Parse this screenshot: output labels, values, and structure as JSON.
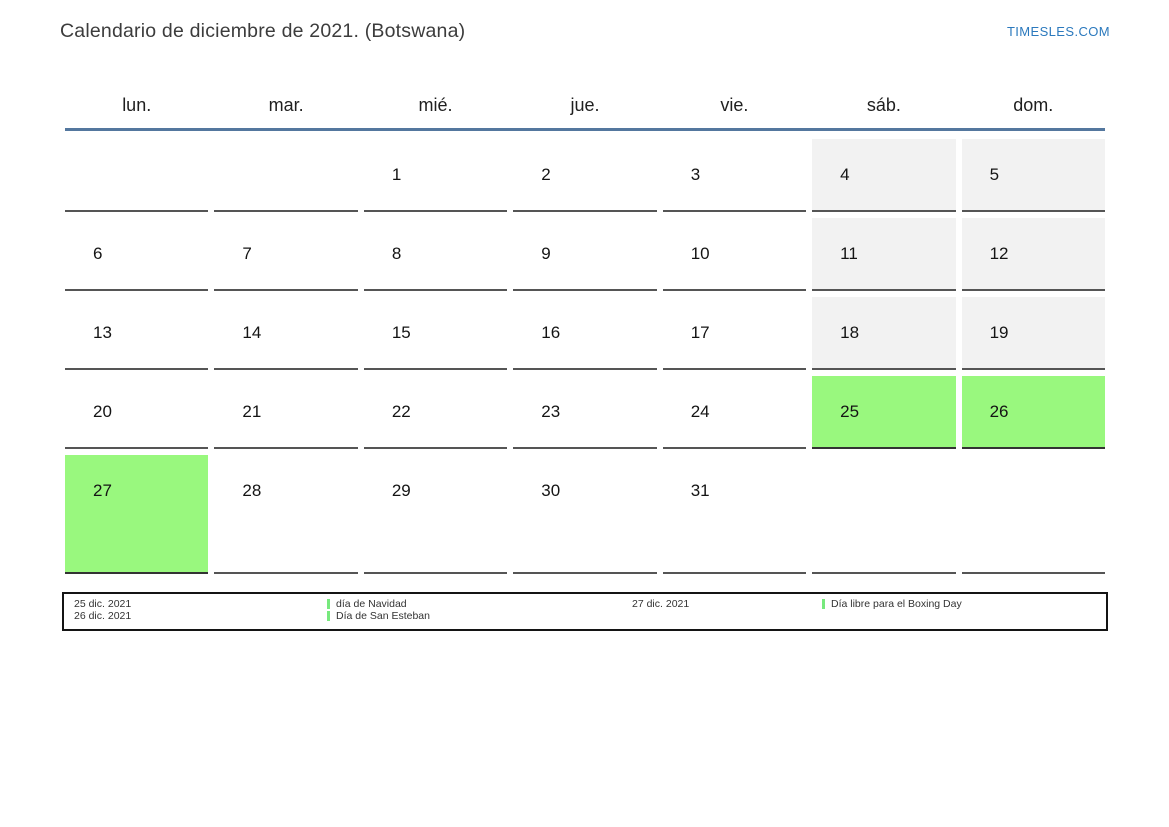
{
  "header": {
    "title": "Calendario de diciembre de 2021. (Botswana)",
    "site_link": "TIMESLES.COM"
  },
  "calendar": {
    "day_headers": [
      "lun.",
      "mar.",
      "mié.",
      "jue.",
      "vie.",
      "sáb.",
      "dom."
    ],
    "weeks": [
      [
        {
          "day": "",
          "type": "empty"
        },
        {
          "day": "",
          "type": "empty"
        },
        {
          "day": "1",
          "type": "normal"
        },
        {
          "day": "2",
          "type": "normal"
        },
        {
          "day": "3",
          "type": "normal"
        },
        {
          "day": "4",
          "type": "weekend"
        },
        {
          "day": "5",
          "type": "weekend"
        }
      ],
      [
        {
          "day": "6",
          "type": "normal"
        },
        {
          "day": "7",
          "type": "normal"
        },
        {
          "day": "8",
          "type": "normal"
        },
        {
          "day": "9",
          "type": "normal"
        },
        {
          "day": "10",
          "type": "normal"
        },
        {
          "day": "11",
          "type": "weekend"
        },
        {
          "day": "12",
          "type": "weekend"
        }
      ],
      [
        {
          "day": "13",
          "type": "normal"
        },
        {
          "day": "14",
          "type": "normal"
        },
        {
          "day": "15",
          "type": "normal"
        },
        {
          "day": "16",
          "type": "normal"
        },
        {
          "day": "17",
          "type": "normal"
        },
        {
          "day": "18",
          "type": "weekend"
        },
        {
          "day": "19",
          "type": "weekend"
        }
      ],
      [
        {
          "day": "20",
          "type": "normal"
        },
        {
          "day": "21",
          "type": "normal"
        },
        {
          "day": "22",
          "type": "normal"
        },
        {
          "day": "23",
          "type": "normal"
        },
        {
          "day": "24",
          "type": "normal"
        },
        {
          "day": "25",
          "type": "holiday"
        },
        {
          "day": "26",
          "type": "holiday"
        }
      ],
      [
        {
          "day": "27",
          "type": "holiday"
        },
        {
          "day": "28",
          "type": "normal"
        },
        {
          "day": "29",
          "type": "normal"
        },
        {
          "day": "30",
          "type": "normal"
        },
        {
          "day": "31",
          "type": "normal"
        },
        {
          "day": "",
          "type": "empty"
        },
        {
          "day": "",
          "type": "empty"
        }
      ]
    ]
  },
  "legend": {
    "groups": [
      {
        "dates": [
          "25 dic. 2021",
          "26 dic. 2021"
        ],
        "events": [
          "día de Navidad",
          "Día de San Esteban"
        ]
      },
      {
        "dates": [
          "27 dic. 2021"
        ],
        "events": [
          "Día libre para el Boxing Day"
        ]
      }
    ]
  },
  "colors": {
    "accent_blue": "#2b79bd",
    "divider_blue": "#54779e",
    "weekend_bg": "#f2f2f2",
    "holiday_green": "#99f87e",
    "legend_marker_green": "#77e97d"
  }
}
